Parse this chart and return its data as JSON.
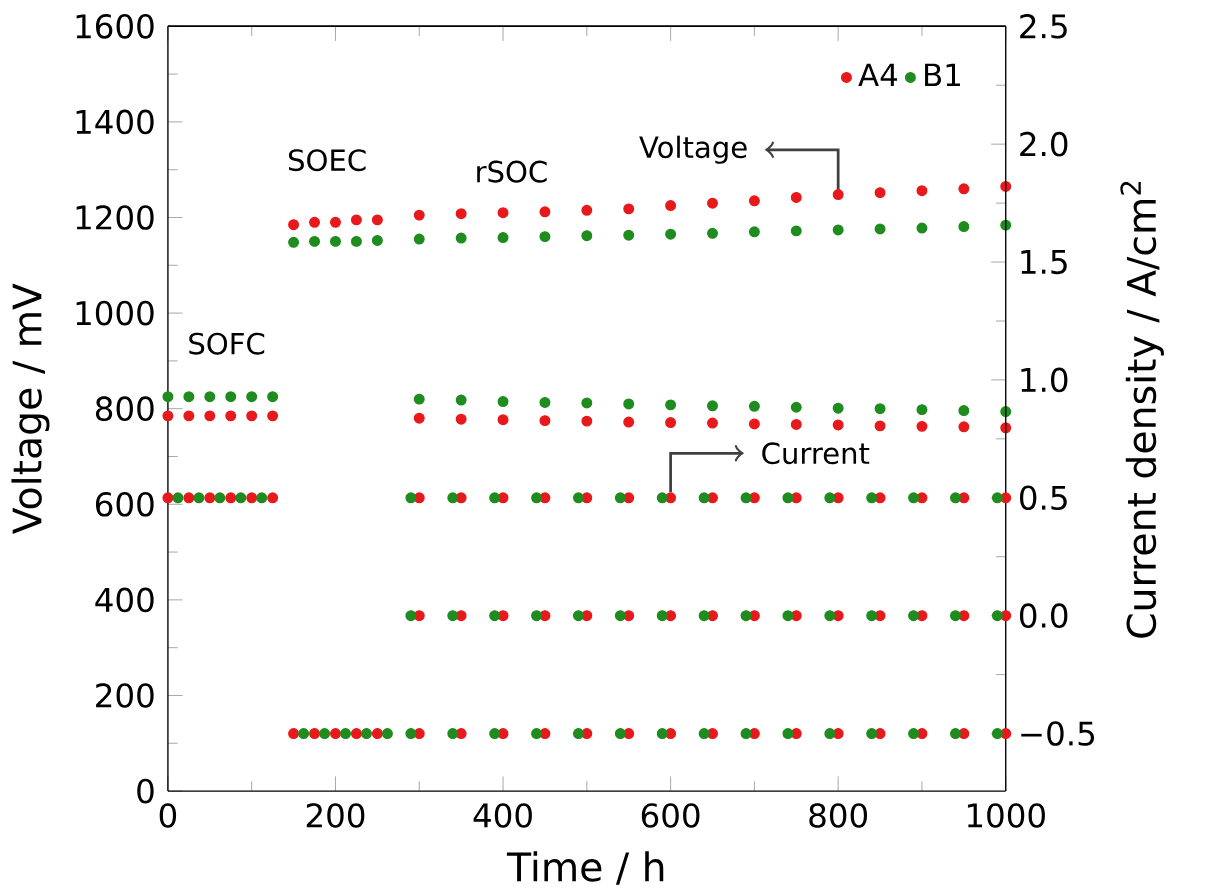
{
  "chart_data": {
    "type": "scatter",
    "xlabel": "Time / h",
    "ylabel": "Voltage / mV",
    "y2label": "Current density / A/cm$^{2}$",
    "xlim": [
      0,
      1000
    ],
    "xticks": [
      0,
      200,
      400,
      600,
      800,
      1000
    ],
    "ylim": [
      0,
      1600
    ],
    "yticks": [
      0,
      200,
      400,
      600,
      800,
      1000,
      1200,
      1400,
      1600
    ],
    "y2lim": [
      -0.744,
      2.5
    ],
    "y2ticks": [
      {
        "value": -0.5,
        "label": "−0.5"
      },
      {
        "value": 0.0,
        "label": "0.0"
      },
      {
        "value": 0.5,
        "label": "0.5"
      },
      {
        "value": 1.0,
        "label": "1.0"
      },
      {
        "value": 1.5,
        "label": "1.5"
      },
      {
        "value": 2.0,
        "label": "2.0"
      },
      {
        "value": 2.5,
        "label": "2.5"
      }
    ],
    "legend": "top right",
    "series": [
      {
        "name": "A4",
        "color": "#e8191c",
        "x": [
          0,
          25,
          50,
          75,
          100,
          125,
          150,
          175,
          200,
          225,
          250,
          300,
          350,
          400,
          450,
          500,
          550,
          600,
          650,
          700,
          750,
          800,
          850,
          900,
          950,
          1000,
          300,
          350,
          400,
          450,
          500,
          550,
          600,
          650,
          700,
          750,
          800,
          850,
          900,
          950,
          1000
        ],
        "values": [
          785,
          785,
          785,
          785,
          785,
          785,
          1185,
          1190,
          1190,
          1195,
          1195,
          1205,
          1208,
          1210,
          1212,
          1215,
          1218,
          1225,
          1230,
          1235,
          1242,
          1248,
          1252,
          1256,
          1260,
          1265,
          780,
          778,
          777,
          775,
          774,
          772,
          771,
          770,
          768,
          767,
          766,
          764,
          763,
          762,
          760
        ]
      },
      {
        "name": "B1",
        "color": "#1e8c1e",
        "x": [
          0,
          25,
          50,
          75,
          100,
          125,
          150,
          175,
          200,
          225,
          250,
          300,
          350,
          400,
          450,
          500,
          550,
          600,
          650,
          700,
          750,
          800,
          850,
          900,
          950,
          1000,
          300,
          350,
          400,
          450,
          500,
          550,
          600,
          650,
          700,
          750,
          800,
          850,
          900,
          950,
          1000
        ],
        "values": [
          825,
          825,
          825,
          825,
          825,
          825,
          1148,
          1150,
          1150,
          1150,
          1152,
          1155,
          1157,
          1158,
          1160,
          1162,
          1163,
          1165,
          1167,
          1170,
          1172,
          1174,
          1176,
          1178,
          1181,
          1184,
          820,
          818,
          815,
          813,
          812,
          810,
          808,
          806,
          805,
          803,
          801,
          800,
          798,
          796,
          794
        ]
      },
      {
        "color": "#e8191c",
        "axis": "y2",
        "x": [
          0,
          25,
          50,
          75,
          100,
          125,
          150,
          175,
          200,
          225,
          250,
          300,
          350,
          400,
          450,
          500,
          550,
          600,
          650,
          700,
          750,
          800,
          850,
          900,
          950,
          1000,
          300,
          350,
          400,
          450,
          500,
          550,
          600,
          650,
          700,
          750,
          800,
          850,
          900,
          950,
          1000,
          300,
          350,
          400,
          450,
          500,
          550,
          600,
          650,
          700,
          750,
          800,
          850,
          900,
          950,
          1000
        ],
        "values": [
          0.5,
          0.5,
          0.5,
          0.5,
          0.5,
          0.5,
          -0.5,
          -0.5,
          -0.5,
          -0.5,
          -0.5,
          0.5,
          0.5,
          0.5,
          0.5,
          0.5,
          0.5,
          0.5,
          0.5,
          0.5,
          0.5,
          0.5,
          0.5,
          0.5,
          0.5,
          0.5,
          0.0,
          0.0,
          0.0,
          0.0,
          0.0,
          0.0,
          0.0,
          0.0,
          0.0,
          0.0,
          0.0,
          0.0,
          0.0,
          0.0,
          0.0,
          -0.5,
          -0.5,
          -0.5,
          -0.5,
          -0.5,
          -0.5,
          -0.5,
          -0.5,
          -0.5,
          -0.5,
          -0.5,
          -0.5,
          -0.5,
          -0.5,
          -0.5
        ]
      },
      {
        "color": "#1e8c1e",
        "axis": "y2",
        "x": [
          12,
          37,
          62,
          87,
          112,
          162,
          187,
          212,
          237,
          262,
          290,
          340,
          390,
          440,
          490,
          540,
          590,
          640,
          690,
          740,
          790,
          840,
          890,
          940,
          990,
          290,
          340,
          390,
          440,
          490,
          540,
          590,
          640,
          690,
          740,
          790,
          840,
          890,
          940,
          990,
          290,
          340,
          390,
          440,
          490,
          540,
          590,
          640,
          690,
          740,
          790,
          840,
          890,
          940,
          990
        ],
        "values": [
          0.5,
          0.5,
          0.5,
          0.5,
          0.5,
          -0.5,
          -0.5,
          -0.5,
          -0.5,
          -0.5,
          0.5,
          0.5,
          0.5,
          0.5,
          0.5,
          0.5,
          0.5,
          0.5,
          0.5,
          0.5,
          0.5,
          0.5,
          0.5,
          0.5,
          0.5,
          0.0,
          0.0,
          0.0,
          0.0,
          0.0,
          0.0,
          0.0,
          0.0,
          0.0,
          0.0,
          0.0,
          0.0,
          0.0,
          0.0,
          0.0,
          -0.5,
          -0.5,
          -0.5,
          -0.5,
          -0.5,
          -0.5,
          -0.5,
          -0.5,
          -0.5,
          -0.5,
          -0.5,
          -0.5,
          -0.5,
          -0.5,
          -0.5
        ]
      }
    ],
    "annotations": [
      "SOFC",
      "SOEC",
      "rSOC",
      {
        "text": "Voltage",
        "x": 800,
        "y": 1250
      },
      {
        "text": "Current",
        "x": 600,
        "y": 615
      }
    ]
  }
}
